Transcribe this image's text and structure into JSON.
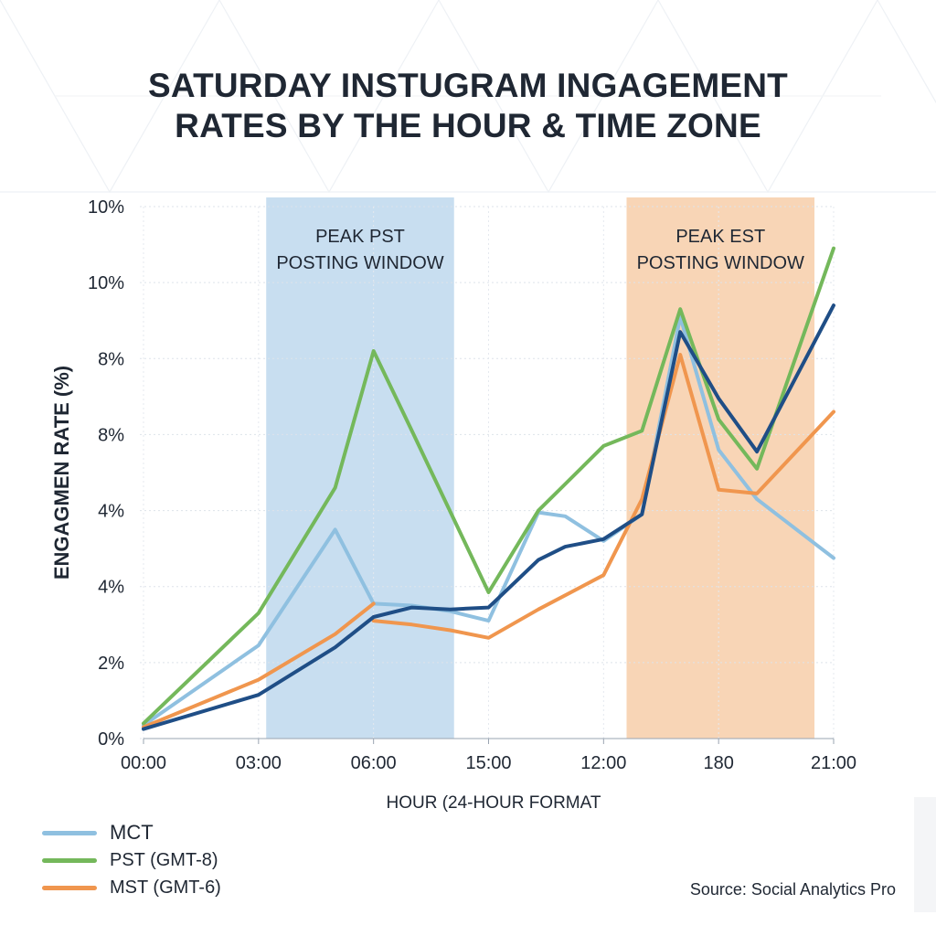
{
  "title_lines": [
    "SATURDAY INSTUGRAM INGAGEMENT",
    "RATES BY THE HOUR & TIME ZONE"
  ],
  "source": "Source: Social Analytics Pro",
  "chart_data": {
    "type": "line",
    "xlabel": "HOUR (24-HOUR FORMAT",
    "ylabel": "ENGAGMEN RATE (%)",
    "x_tick_labels": [
      "00:00",
      "03:00",
      "06:00",
      "15:00",
      "12:00",
      "180",
      "21:00"
    ],
    "y_tick_labels": [
      "0%",
      "2%",
      "4%",
      "4%",
      "8%",
      "8%",
      "10%",
      "10%"
    ],
    "ylim": [
      0,
      14
    ],
    "xlim": [
      0,
      18
    ],
    "grid": true,
    "legend_position": "bottom-left",
    "shaded_regions": [
      {
        "label_lines": [
          "PEAK PST",
          "POSTING WINDOW"
        ],
        "x_start": 3.2,
        "x_end": 8.1,
        "color": "#c5dcef"
      },
      {
        "label_lines": [
          "PEAK EST",
          "POSTING WINDOW"
        ],
        "x_start": 12.6,
        "x_end": 17.5,
        "color": "#f8d3b2"
      }
    ],
    "series": [
      {
        "name": "MCT",
        "color": "#8fc0e0",
        "width": 4,
        "points": [
          [
            0,
            0.35
          ],
          [
            3,
            2.45
          ],
          [
            5,
            5.5
          ],
          [
            6,
            3.55
          ],
          [
            7,
            3.5
          ],
          [
            8,
            3.35
          ],
          [
            9,
            3.1
          ],
          [
            10.3,
            5.95
          ],
          [
            11,
            5.85
          ],
          [
            12,
            5.2
          ],
          [
            13,
            5.9
          ],
          [
            14,
            11.1
          ],
          [
            15,
            7.6
          ],
          [
            16,
            6.3
          ],
          [
            18,
            4.75
          ]
        ]
      },
      {
        "name": "PST (GMT-8)",
        "color": "#74b85b",
        "width": 4,
        "points": [
          [
            0,
            0.4
          ],
          [
            3,
            3.3
          ],
          [
            5,
            6.6
          ],
          [
            6,
            10.2
          ],
          [
            7,
            8.1
          ],
          [
            9,
            3.85
          ],
          [
            10.3,
            6.0
          ],
          [
            11,
            6.7
          ],
          [
            12,
            7.7
          ],
          [
            13,
            8.1
          ],
          [
            14,
            11.3
          ],
          [
            15,
            8.4
          ],
          [
            16,
            7.1
          ],
          [
            18,
            12.9
          ]
        ]
      },
      {
        "name": "MST (GMT-6)",
        "color": "#f0964e",
        "width": 4,
        "points": [
          [
            0,
            0.3
          ],
          [
            3,
            1.55
          ],
          [
            5,
            2.75
          ],
          [
            6,
            3.55
          ]
        ]
      },
      {
        "name": "",
        "color": "#f0964e",
        "width": 4,
        "points": [
          [
            6,
            3.1
          ],
          [
            7,
            3.0
          ],
          [
            8,
            2.85
          ],
          [
            9,
            2.65
          ],
          [
            10.3,
            3.4
          ],
          [
            12,
            4.3
          ],
          [
            13,
            6.3
          ],
          [
            14,
            10.1
          ],
          [
            15,
            6.55
          ],
          [
            16,
            6.45
          ],
          [
            18,
            8.6
          ]
        ]
      },
      {
        "name": "",
        "color": "#1f4e86",
        "width": 4,
        "points": [
          [
            0,
            0.25
          ],
          [
            3,
            1.15
          ],
          [
            5,
            2.4
          ],
          [
            6,
            3.2
          ],
          [
            7,
            3.45
          ],
          [
            8,
            3.4
          ],
          [
            9,
            3.45
          ],
          [
            10.3,
            4.7
          ],
          [
            11,
            5.05
          ],
          [
            12,
            5.25
          ],
          [
            13,
            5.9
          ],
          [
            14,
            10.7
          ],
          [
            15,
            8.95
          ],
          [
            16,
            7.55
          ],
          [
            18,
            11.4
          ]
        ]
      }
    ]
  }
}
